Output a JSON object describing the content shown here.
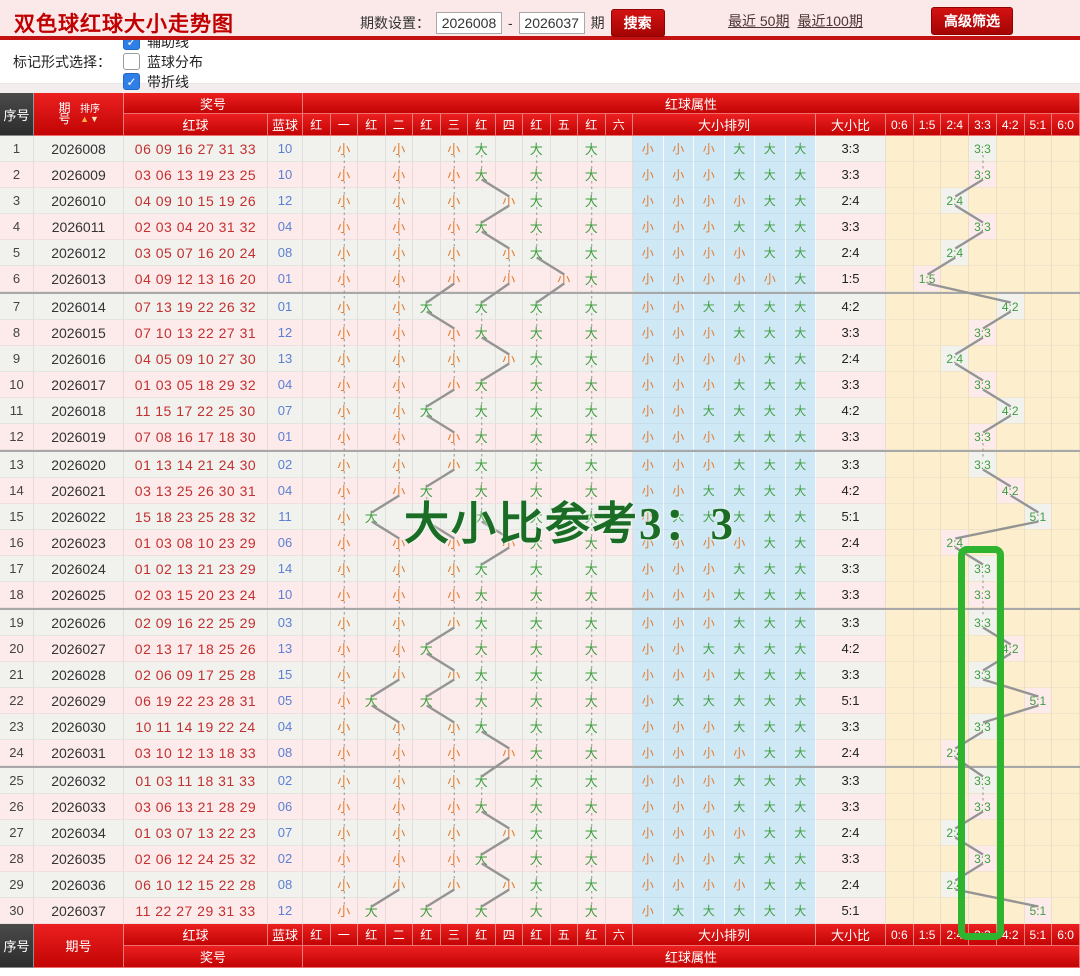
{
  "toolbar": {
    "title": "双色球红球大小走势图",
    "period_label": "期数设置：",
    "from": "2026008",
    "dash": "-",
    "to": "2026037",
    "unit": "期",
    "search_label": "搜索",
    "recent50": "最近 50期",
    "recent100": "最近100期",
    "advanced_filter": "高级筛选"
  },
  "options": {
    "label": "标记形式选择：",
    "checkboxes": [
      {
        "label": "辅助线",
        "checked": true
      },
      {
        "label": "蓝球分布",
        "checked": false
      },
      {
        "label": "带折线",
        "checked": true
      }
    ]
  },
  "table": {
    "header": {
      "seq": "序号",
      "period": "期号",
      "sort": "排序",
      "sort_up": "▲",
      "sort_down": "▼",
      "prize": "奖号",
      "red": "红球",
      "blue": "蓝球",
      "attr": "红球属性",
      "ball_cols": [
        "红",
        "一",
        "红",
        "二",
        "红",
        "三",
        "红",
        "四",
        "红",
        "五",
        "红",
        "六"
      ],
      "pattern": "大小排列",
      "ratio": "大小比",
      "ratio_cols": [
        "0:6",
        "1:5",
        "2:4",
        "3:3",
        "4:2",
        "5:1",
        "6:0"
      ]
    },
    "rows": [
      {
        "seq": "1",
        "period": "2026008",
        "reds": [
          "06",
          "09",
          "16",
          "27",
          "31",
          "33"
        ],
        "blue": "10",
        "pattern": "小小小大大大",
        "ratio": "3:3"
      },
      {
        "seq": "2",
        "period": "2026009",
        "reds": [
          "03",
          "06",
          "13",
          "19",
          "23",
          "25"
        ],
        "blue": "10",
        "pattern": "小小小大大大",
        "ratio": "3:3"
      },
      {
        "seq": "3",
        "period": "2026010",
        "reds": [
          "04",
          "09",
          "10",
          "15",
          "19",
          "26"
        ],
        "blue": "12",
        "pattern": "小小小小大大",
        "ratio": "2:4"
      },
      {
        "seq": "4",
        "period": "2026011",
        "reds": [
          "02",
          "03",
          "04",
          "20",
          "31",
          "32"
        ],
        "blue": "04",
        "pattern": "小小小大大大",
        "ratio": "3:3"
      },
      {
        "seq": "5",
        "period": "2026012",
        "reds": [
          "03",
          "05",
          "07",
          "16",
          "20",
          "24"
        ],
        "blue": "08",
        "pattern": "小小小小大大",
        "ratio": "2:4"
      },
      {
        "seq": "6",
        "period": "2026013",
        "reds": [
          "04",
          "09",
          "12",
          "13",
          "16",
          "20"
        ],
        "blue": "01",
        "pattern": "小小小小小大",
        "ratio": "1:5"
      },
      {
        "seq": "7",
        "period": "2026014",
        "reds": [
          "07",
          "13",
          "19",
          "22",
          "26",
          "32"
        ],
        "blue": "01",
        "pattern": "小小大大大大",
        "ratio": "4:2"
      },
      {
        "seq": "8",
        "period": "2026015",
        "reds": [
          "07",
          "10",
          "13",
          "22",
          "27",
          "31"
        ],
        "blue": "12",
        "pattern": "小小小大大大",
        "ratio": "3:3"
      },
      {
        "seq": "9",
        "period": "2026016",
        "reds": [
          "04",
          "05",
          "09",
          "10",
          "27",
          "30"
        ],
        "blue": "13",
        "pattern": "小小小小大大",
        "ratio": "2:4"
      },
      {
        "seq": "10",
        "period": "2026017",
        "reds": [
          "01",
          "03",
          "05",
          "18",
          "29",
          "32"
        ],
        "blue": "04",
        "pattern": "小小小大大大",
        "ratio": "3:3"
      },
      {
        "seq": "11",
        "period": "2026018",
        "reds": [
          "11",
          "15",
          "17",
          "22",
          "25",
          "30"
        ],
        "blue": "07",
        "pattern": "小小大大大大",
        "ratio": "4:2"
      },
      {
        "seq": "12",
        "period": "2026019",
        "reds": [
          "07",
          "08",
          "16",
          "17",
          "18",
          "30"
        ],
        "blue": "01",
        "pattern": "小小小大大大",
        "ratio": "3:3"
      },
      {
        "seq": "13",
        "period": "2026020",
        "reds": [
          "01",
          "13",
          "14",
          "21",
          "24",
          "30"
        ],
        "blue": "02",
        "pattern": "小小小大大大",
        "ratio": "3:3"
      },
      {
        "seq": "14",
        "period": "2026021",
        "reds": [
          "03",
          "13",
          "25",
          "26",
          "30",
          "31"
        ],
        "blue": "04",
        "pattern": "小小大大大大",
        "ratio": "4:2"
      },
      {
        "seq": "15",
        "period": "2026022",
        "reds": [
          "15",
          "18",
          "23",
          "25",
          "28",
          "32"
        ],
        "blue": "11",
        "pattern": "小大大大大大",
        "ratio": "5:1"
      },
      {
        "seq": "16",
        "period": "2026023",
        "reds": [
          "01",
          "03",
          "08",
          "10",
          "23",
          "29"
        ],
        "blue": "06",
        "pattern": "小小小小大大",
        "ratio": "2:4"
      },
      {
        "seq": "17",
        "period": "2026024",
        "reds": [
          "01",
          "02",
          "13",
          "21",
          "23",
          "29"
        ],
        "blue": "14",
        "pattern": "小小小大大大",
        "ratio": "3:3"
      },
      {
        "seq": "18",
        "period": "2026025",
        "reds": [
          "02",
          "03",
          "15",
          "20",
          "23",
          "24"
        ],
        "blue": "10",
        "pattern": "小小小大大大",
        "ratio": "3:3"
      },
      {
        "seq": "19",
        "period": "2026026",
        "reds": [
          "02",
          "09",
          "16",
          "22",
          "25",
          "29"
        ],
        "blue": "03",
        "pattern": "小小小大大大",
        "ratio": "3:3"
      },
      {
        "seq": "20",
        "period": "2026027",
        "reds": [
          "02",
          "13",
          "17",
          "18",
          "25",
          "26"
        ],
        "blue": "13",
        "pattern": "小小大大大大",
        "ratio": "4:2"
      },
      {
        "seq": "21",
        "period": "2026028",
        "reds": [
          "02",
          "06",
          "09",
          "17",
          "25",
          "28"
        ],
        "blue": "15",
        "pattern": "小小小大大大",
        "ratio": "3:3"
      },
      {
        "seq": "22",
        "period": "2026029",
        "reds": [
          "06",
          "19",
          "22",
          "23",
          "28",
          "31"
        ],
        "blue": "05",
        "pattern": "小大大大大大",
        "ratio": "5:1"
      },
      {
        "seq": "23",
        "period": "2026030",
        "reds": [
          "10",
          "11",
          "14",
          "19",
          "22",
          "24"
        ],
        "blue": "04",
        "pattern": "小小小大大大",
        "ratio": "3:3"
      },
      {
        "seq": "24",
        "period": "2026031",
        "reds": [
          "03",
          "10",
          "12",
          "13",
          "18",
          "33"
        ],
        "blue": "08",
        "pattern": "小小小小大大",
        "ratio": "2:4"
      },
      {
        "seq": "25",
        "period": "2026032",
        "reds": [
          "01",
          "03",
          "11",
          "18",
          "31",
          "33"
        ],
        "blue": "02",
        "pattern": "小小小大大大",
        "ratio": "3:3"
      },
      {
        "seq": "26",
        "period": "2026033",
        "reds": [
          "03",
          "06",
          "13",
          "21",
          "28",
          "29"
        ],
        "blue": "06",
        "pattern": "小小小大大大",
        "ratio": "3:3"
      },
      {
        "seq": "27",
        "period": "2026034",
        "reds": [
          "01",
          "03",
          "07",
          "13",
          "22",
          "23"
        ],
        "blue": "07",
        "pattern": "小小小小大大",
        "ratio": "2:4"
      },
      {
        "seq": "28",
        "period": "2026035",
        "reds": [
          "02",
          "06",
          "12",
          "24",
          "25",
          "32"
        ],
        "blue": "02",
        "pattern": "小小小大大大",
        "ratio": "3:3"
      },
      {
        "seq": "29",
        "period": "2026036",
        "reds": [
          "06",
          "10",
          "12",
          "15",
          "22",
          "28"
        ],
        "blue": "08",
        "pattern": "小小小小大大",
        "ratio": "2:4"
      },
      {
        "seq": "30",
        "period": "2026037",
        "reds": [
          "11",
          "22",
          "27",
          "29",
          "31",
          "33"
        ],
        "blue": "12",
        "pattern": "小大大大大大",
        "ratio": "5:1"
      }
    ]
  },
  "annotations": {
    "watermark": "大小比参考3：3",
    "highlight_column": "3:3"
  },
  "colors": {
    "small": "#e07b2f",
    "big": "#3f9e3f",
    "accent_red": "#c20404",
    "highlight_green": "#2eb42e",
    "blue_ball": "#5b7fd4",
    "line_gray": "#949494"
  }
}
